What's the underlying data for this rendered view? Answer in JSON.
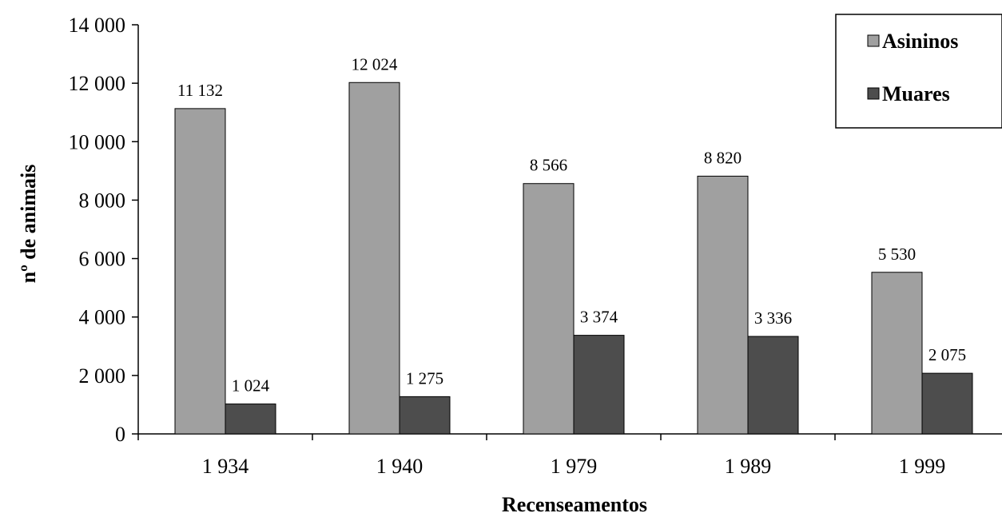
{
  "chart_data": {
    "type": "bar",
    "categories": [
      "1 934",
      "1 940",
      "1 979",
      "1 989",
      "1 999"
    ],
    "series": [
      {
        "name": "Asininos",
        "values": [
          11132,
          12024,
          8566,
          8820,
          5530
        ],
        "labels": [
          "11 132",
          "12 024",
          "8 566",
          "8 820",
          "5 530"
        ],
        "color": "#a0a0a0"
      },
      {
        "name": "Muares",
        "values": [
          1024,
          1275,
          3374,
          3336,
          2075
        ],
        "labels": [
          "1 024",
          "1 275",
          "3 374",
          "3 336",
          "2 075"
        ],
        "color": "#4d4d4d"
      }
    ],
    "xlabel": "Recenseamentos",
    "ylabel": "nº de animais",
    "ylim": [
      0,
      14000
    ],
    "yticks": [
      0,
      2000,
      4000,
      6000,
      8000,
      10000,
      12000,
      14000
    ],
    "ytick_labels": [
      "0",
      "2 000",
      "4 000",
      "6 000",
      "8 000",
      "10 000",
      "12 000",
      "14 000"
    ],
    "grid": false,
    "legend": "top-right"
  }
}
